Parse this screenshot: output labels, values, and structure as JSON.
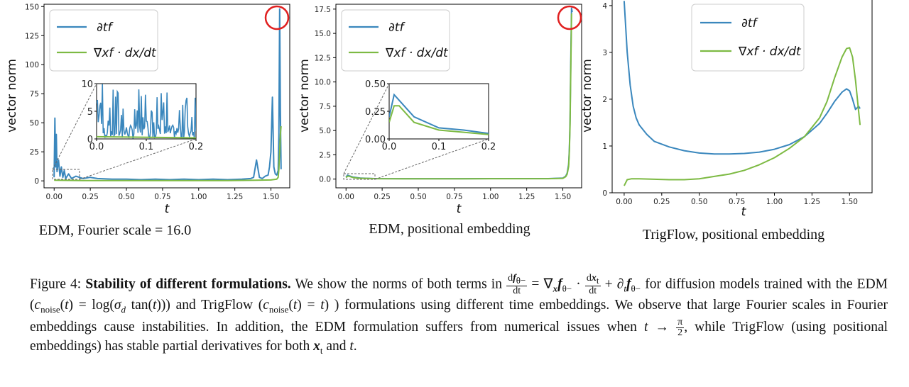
{
  "chart_data": [
    {
      "type": "line",
      "title": "",
      "xlabel": "t",
      "ylabel": "vector norm",
      "xlim": [
        -0.07,
        1.63
      ],
      "ylim": [
        -6,
        152
      ],
      "xticks": [
        "0.00",
        "0.25",
        "0.50",
        "0.75",
        "1.00",
        "1.25",
        "1.50"
      ],
      "yticks": [
        "0",
        "25",
        "50",
        "75",
        "100",
        "125",
        "150"
      ],
      "legend_position": "top-left",
      "series": [
        {
          "name": "∂tf",
          "color": "#3a87bd",
          "x": [
            0.0,
            0.005,
            0.01,
            0.015,
            0.02,
            0.03,
            0.04,
            0.05,
            0.06,
            0.07,
            0.08,
            0.1,
            0.12,
            0.15,
            0.2,
            0.25,
            0.3,
            0.4,
            0.5,
            0.6,
            0.7,
            0.8,
            0.9,
            1.0,
            1.1,
            1.2,
            1.3,
            1.36,
            1.38,
            1.4,
            1.42,
            1.44,
            1.46,
            1.48,
            1.49,
            1.5,
            1.51,
            1.52,
            1.53,
            1.54,
            1.55,
            1.555,
            1.56,
            1.565,
            1.57
          ],
          "y": [
            3,
            54,
            12,
            40,
            8,
            18,
            4,
            12,
            3,
            9,
            2,
            6,
            2,
            4,
            2,
            3,
            2,
            1.5,
            1.5,
            1,
            1.5,
            1,
            1.5,
            1,
            1.5,
            1,
            1.5,
            2,
            3,
            18,
            3,
            2,
            4,
            5,
            12,
            25,
            72,
            12,
            6,
            5,
            9,
            40,
            148,
            60,
            10
          ]
        },
        {
          "name": "∇xf · dx/dt",
          "color": "#7dba43",
          "x": [
            0.0,
            0.2,
            0.5,
            0.8,
            1.0,
            1.2,
            1.4,
            1.5,
            1.54,
            1.55,
            1.555,
            1.56,
            1.565,
            1.57
          ],
          "y": [
            0.5,
            0.2,
            0.2,
            0.2,
            0.2,
            0.3,
            0.5,
            0.8,
            1.5,
            3,
            10,
            25,
            40,
            47
          ]
        }
      ],
      "annotations": [
        "red-circle-peak"
      ],
      "inset": {
        "xlim": [
          0,
          0.2
        ],
        "ylim": [
          0,
          10
        ],
        "xticks": [
          "0.0",
          "0.1",
          "0.2"
        ],
        "yticks": [
          "0",
          "5",
          "10"
        ]
      }
    },
    {
      "type": "line",
      "title": "",
      "xlabel": "t",
      "ylabel": "vector norm",
      "xlim": [
        -0.07,
        1.63
      ],
      "ylim": [
        -0.9,
        18
      ],
      "xticks": [
        "0.00",
        "0.25",
        "0.50",
        "0.75",
        "1.00",
        "1.25",
        "1.50"
      ],
      "yticks": [
        "0.0",
        "2.5",
        "5.0",
        "7.5",
        "10.0",
        "12.5",
        "15.0",
        "17.5"
      ],
      "legend_position": "top-left",
      "series": [
        {
          "name": "∂tf",
          "color": "#3a87bd",
          "x": [
            0.0,
            0.01,
            0.02,
            0.05,
            0.1,
            0.15,
            0.2,
            0.4,
            0.6,
            0.8,
            1.0,
            1.2,
            1.4,
            1.5,
            1.52,
            1.53,
            1.54,
            1.545,
            1.55,
            1.555,
            1.56,
            1.565
          ],
          "y": [
            0.2,
            0.4,
            0.35,
            0.2,
            0.1,
            0.08,
            0.05,
            0.04,
            0.04,
            0.04,
            0.05,
            0.05,
            0.05,
            0.1,
            0.3,
            0.6,
            1.5,
            3,
            6,
            12,
            17.6,
            17.2
          ]
        },
        {
          "name": "∇xf · dx/dt",
          "color": "#7dba43",
          "x": [
            0.0,
            0.01,
            0.02,
            0.05,
            0.1,
            0.15,
            0.2,
            0.4,
            0.6,
            0.8,
            1.0,
            1.2,
            1.4,
            1.5,
            1.52,
            1.53,
            1.54,
            1.545,
            1.55,
            1.555,
            1.56,
            1.565
          ],
          "y": [
            0.15,
            0.3,
            0.3,
            0.15,
            0.08,
            0.06,
            0.04,
            0.03,
            0.03,
            0.03,
            0.04,
            0.04,
            0.04,
            0.08,
            0.25,
            0.5,
            1.3,
            2.8,
            5.5,
            11,
            17.0,
            17.0
          ]
        }
      ],
      "annotations": [
        "red-circle-peak"
      ],
      "inset": {
        "xlim": [
          0,
          0.2
        ],
        "ylim": [
          0,
          0.5
        ],
        "xticks": [
          "0.0",
          "0.1",
          "0.2"
        ],
        "yticks": [
          "0.00",
          "0.25",
          "0.50"
        ]
      }
    },
    {
      "type": "line",
      "title": "",
      "xlabel": "t",
      "ylabel": "vector norm",
      "xlim": [
        -0.08,
        1.65
      ],
      "ylim": [
        0,
        4.15
      ],
      "xticks": [
        "0.00",
        "0.25",
        "0.50",
        "0.75",
        "1.00",
        "1.25",
        "1.50"
      ],
      "yticks": [
        "0",
        "1",
        "2",
        "3",
        "4"
      ],
      "legend_position": "top-right",
      "series": [
        {
          "name": "∂tf",
          "color": "#3a87bd",
          "x": [
            0.0,
            0.02,
            0.04,
            0.06,
            0.08,
            0.1,
            0.15,
            0.2,
            0.3,
            0.4,
            0.5,
            0.6,
            0.7,
            0.8,
            0.9,
            1.0,
            1.1,
            1.2,
            1.3,
            1.35,
            1.4,
            1.45,
            1.48,
            1.5,
            1.52,
            1.54,
            1.56,
            1.57
          ],
          "y": [
            4.1,
            3.0,
            2.3,
            1.85,
            1.6,
            1.45,
            1.25,
            1.1,
            0.98,
            0.9,
            0.85,
            0.83,
            0.83,
            0.84,
            0.87,
            0.93,
            1.03,
            1.2,
            1.48,
            1.7,
            1.95,
            2.15,
            2.22,
            2.18,
            2.0,
            1.78,
            1.85,
            1.8
          ]
        },
        {
          "name": "∇xf · dx/dt",
          "color": "#7dba43",
          "x": [
            0.0,
            0.02,
            0.05,
            0.1,
            0.2,
            0.3,
            0.4,
            0.5,
            0.6,
            0.7,
            0.8,
            0.9,
            1.0,
            1.1,
            1.2,
            1.3,
            1.35,
            1.4,
            1.45,
            1.48,
            1.5,
            1.52,
            1.54,
            1.56,
            1.57
          ],
          "y": [
            0.15,
            0.28,
            0.3,
            0.3,
            0.29,
            0.28,
            0.28,
            0.3,
            0.35,
            0.4,
            0.48,
            0.6,
            0.75,
            0.95,
            1.2,
            1.6,
            1.95,
            2.45,
            2.9,
            3.08,
            3.1,
            2.9,
            2.4,
            1.75,
            1.45
          ]
        }
      ]
    }
  ],
  "subcaptions": [
    "EDM, Fourier scale = 16.0",
    "EDM, positional embedding",
    "TrigFlow, positional embedding"
  ],
  "caption": {
    "label": "Figure 4:",
    "bold_title": "Stability of different formulations.",
    "t1": "We show the norms of both terms in",
    "t2": "for diffusion models trained with the EDM (",
    "t3": ") and TrigFlow (",
    "t4": ") formulations using different time embeddings. We observe that large Fourier scales in Fourier embeddings cause instabilities. In addition, the EDM formulation suffers from numerical issues when",
    "t5": ", while TrigFlow (using positional embeddings) has stable partial derivatives for both",
    "t6": "and"
  },
  "colors": {
    "blue": "#3a87bd",
    "green": "#7dba43",
    "annotation": "#e02020"
  }
}
